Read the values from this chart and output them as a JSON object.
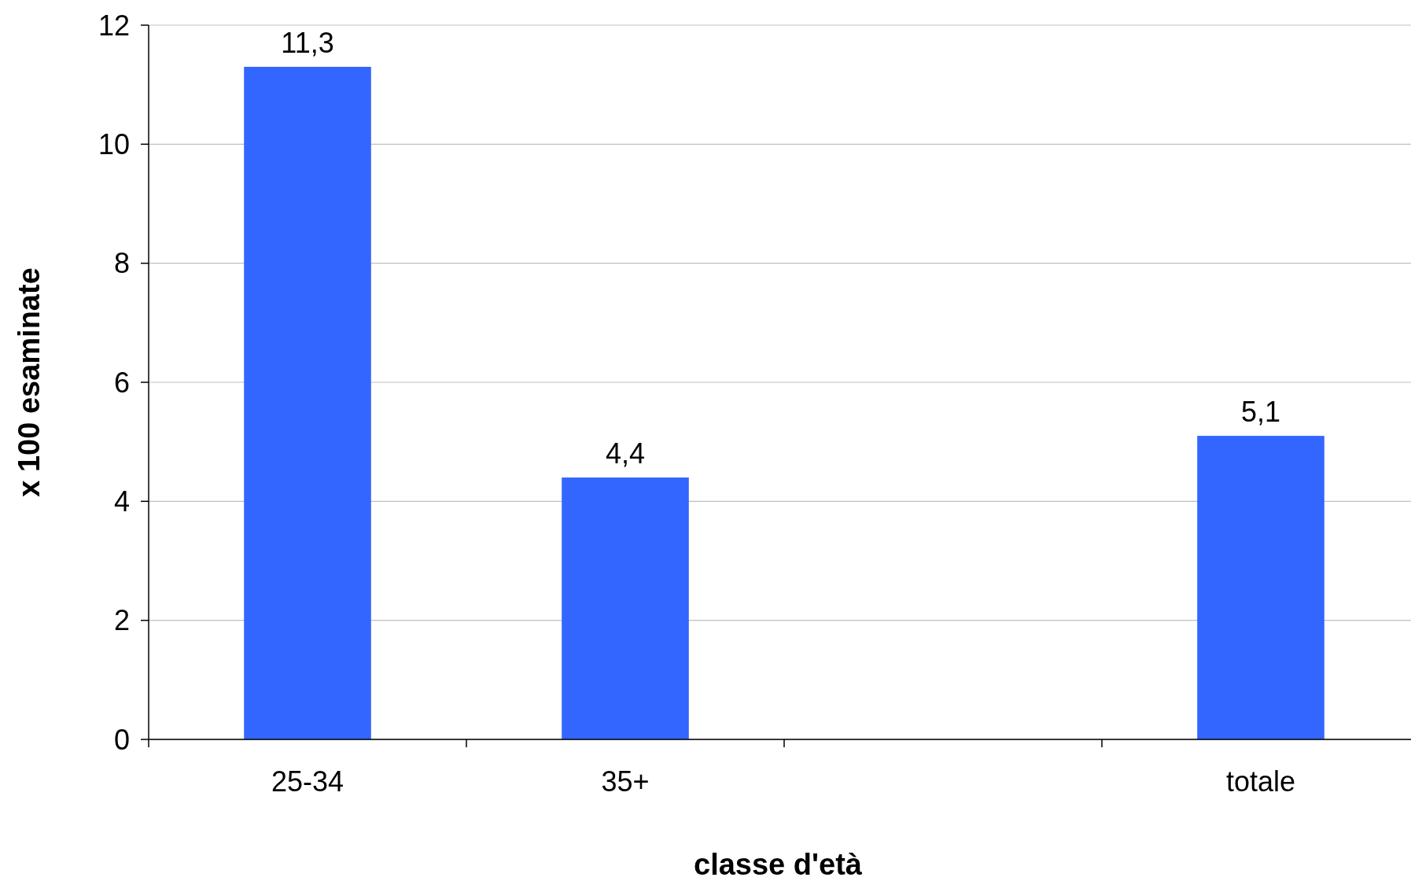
{
  "chart_data": {
    "type": "bar",
    "xlabel": "classe d'età",
    "ylabel": "x 100 esaminate",
    "categories": [
      "25-34",
      "35+",
      null,
      "totale"
    ],
    "values": [
      11.3,
      4.4,
      null,
      5.1
    ],
    "value_labels": [
      "11,3",
      "4,4",
      null,
      "5,1"
    ],
    "color": "#3366ff",
    "ylim": [
      0,
      12
    ],
    "yticks": [
      0,
      2,
      4,
      6,
      8,
      10,
      12
    ],
    "grid": "y"
  }
}
